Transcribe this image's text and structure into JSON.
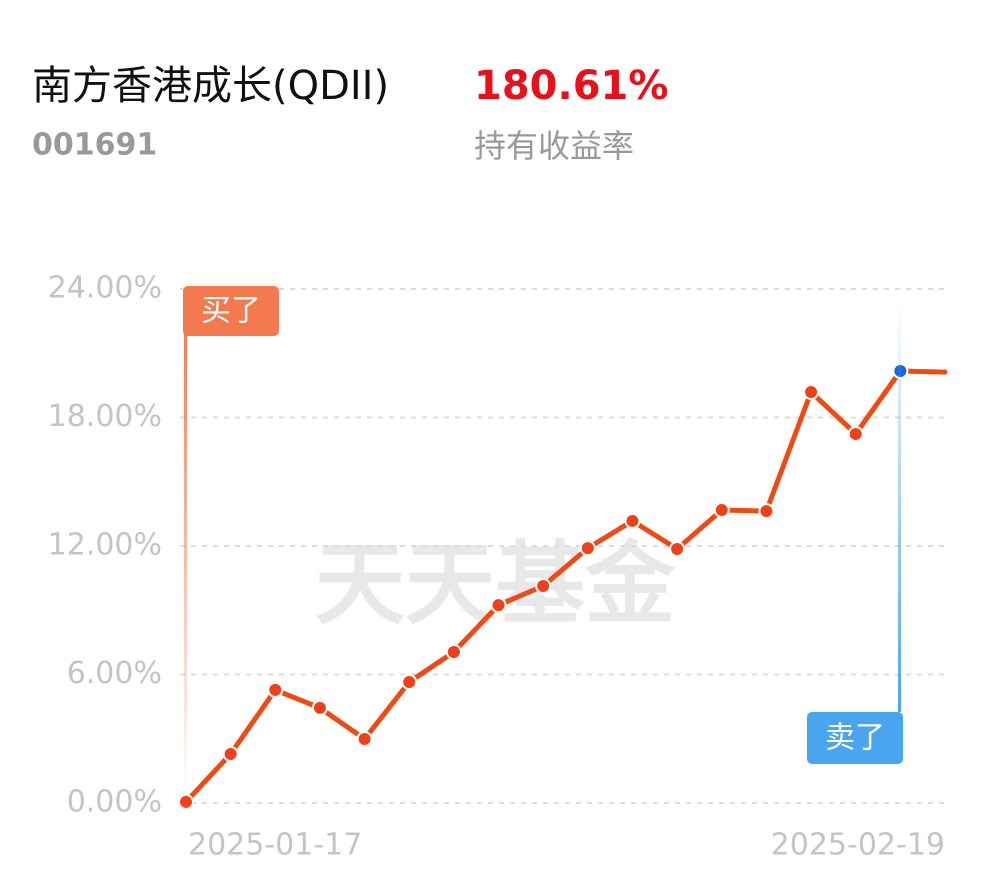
{
  "header": {
    "title": "南方香港成长(QDII)",
    "code": "001691",
    "return_value": "180.61%",
    "return_label": "持有收益率"
  },
  "watermark": "天天基金",
  "chart_data": {
    "type": "line",
    "categories": [
      "2025-01-17",
      null,
      null,
      null,
      null,
      null,
      null,
      null,
      null,
      null,
      null,
      null,
      null,
      null,
      null,
      null,
      null,
      "2025-02-19"
    ],
    "series": [
      {
        "color": "#f04a12",
        "values": [
          0.05,
          2.29,
          5.28,
          4.44,
          2.99,
          5.65,
          7.05,
          9.24,
          10.13,
          11.9,
          13.17,
          11.86,
          13.68,
          13.63,
          19.19,
          17.23,
          20.17,
          20.12
        ]
      }
    ],
    "ylim": [
      0,
      24
    ],
    "yticks": [
      {
        "value": 0,
        "label": "0.00%"
      },
      {
        "value": 6,
        "label": "6.00%"
      },
      {
        "value": 12,
        "label": "12.00%"
      },
      {
        "value": 18,
        "label": "18.00%"
      },
      {
        "value": 24,
        "label": "24.00%"
      }
    ],
    "grid": true,
    "annotations": [
      "买了",
      "卖了"
    ]
  }
}
